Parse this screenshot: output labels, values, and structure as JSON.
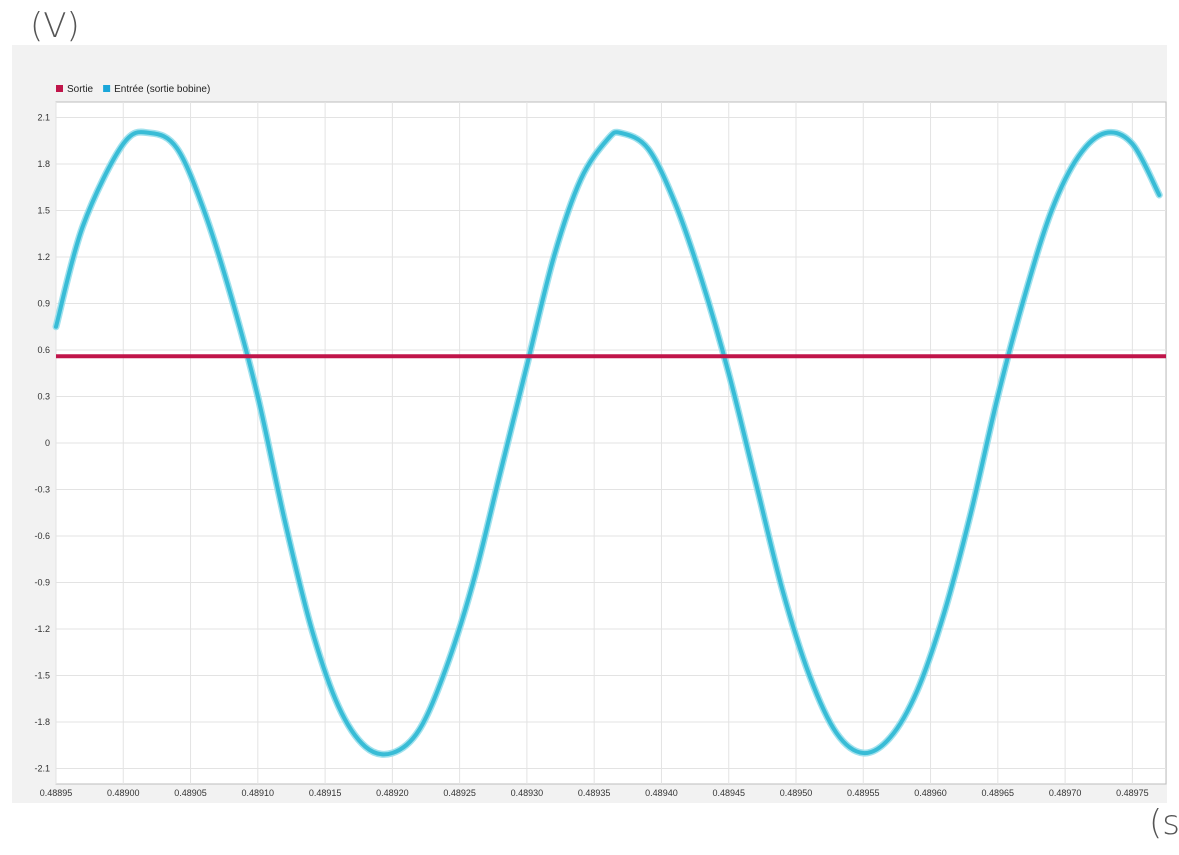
{
  "units": {
    "y": "(V)",
    "x": "(s"
  },
  "chart_data": {
    "type": "line",
    "title": "",
    "xlabel": "(s",
    "ylabel": "(V)",
    "xlim": [
      0.48895,
      0.489775
    ],
    "ylim": [
      -2.2,
      2.2
    ],
    "grid": true,
    "legend_placement": "top-left",
    "x_ticks": [
      "0.48895",
      "0.48900",
      "0.48905",
      "0.48910",
      "0.48915",
      "0.48920",
      "0.48925",
      "0.48930",
      "0.48935",
      "0.48940",
      "0.48945",
      "0.48950",
      "0.48955",
      "0.48960",
      "0.48965",
      "0.48970",
      "0.48975"
    ],
    "y_ticks": [
      "2.1",
      "1.8",
      "1.5",
      "1.2",
      "0.9",
      "0.6",
      "0.3",
      "0",
      "-0.3",
      "-0.6",
      "-0.9",
      "-1.2",
      "-1.5",
      "-1.8",
      "-2.1"
    ],
    "series": [
      {
        "name": "Sortie",
        "color": "#c0154a",
        "x": [
          0.48895,
          0.489775
        ],
        "y": [
          0.56,
          0.56
        ]
      },
      {
        "name": "Entrée (sortie bobine)",
        "color": "#1aa6d9",
        "line_color": "#38bcd6",
        "x": [
          0.48895,
          0.48897,
          0.489,
          0.48902,
          0.48904,
          0.48906,
          0.48908,
          0.4891,
          0.48912,
          0.48914,
          0.48916,
          0.48918,
          0.4892,
          0.48922,
          0.48924,
          0.48926,
          0.48928,
          0.4893,
          0.48932,
          0.48934,
          0.48936,
          0.48937,
          0.48939,
          0.48941,
          0.48943,
          0.48945,
          0.48947,
          0.48949,
          0.48951,
          0.48953,
          0.48955,
          0.48957,
          0.48959,
          0.48961,
          0.48963,
          0.48965,
          0.48967,
          0.48969,
          0.48971,
          0.48973,
          0.48975,
          0.48977
        ],
        "y": [
          0.75,
          1.4,
          1.93,
          2.0,
          1.9,
          1.5,
          0.95,
          0.3,
          -0.5,
          -1.2,
          -1.7,
          -1.96,
          -2.0,
          -1.85,
          -1.45,
          -0.9,
          -0.2,
          0.5,
          1.2,
          1.7,
          1.96,
          2.0,
          1.9,
          1.55,
          1.05,
          0.45,
          -0.25,
          -0.95,
          -1.5,
          -1.87,
          -2.0,
          -1.9,
          -1.6,
          -1.1,
          -0.45,
          0.3,
          0.95,
          1.5,
          1.85,
          2.0,
          1.93,
          1.6
        ]
      }
    ]
  }
}
